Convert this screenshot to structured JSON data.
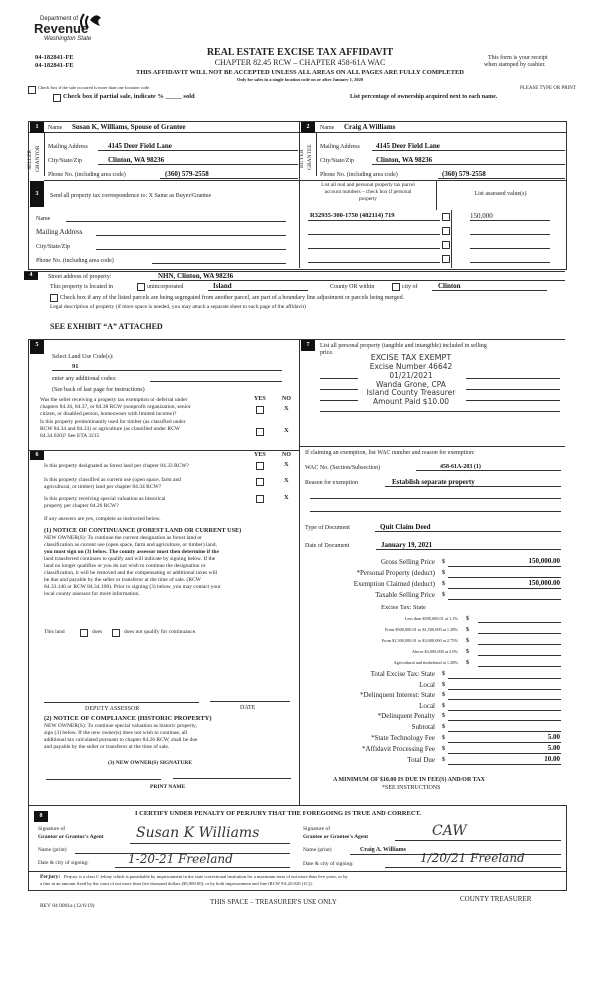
{
  "header": {
    "dept_line1": "Department of",
    "dept_line2": "Revenue",
    "dept_line3": "Washington State",
    "form_ids": [
      "04-182841-FE",
      "04-182841-FE"
    ],
    "title": "REAL ESTATE EXCISE TAX AFFIDAVIT",
    "subtitle": "CHAPTER 82.45 RCW – CHAPTER 458-61A WAC",
    "receipt_note": [
      "This form is your receipt",
      "when stamped by cashier."
    ],
    "warning": "THIS AFFIDAVIT WILL NOT BE ACCEPTED UNLESS ALL AREAS ON ALL PAGES ARE FULLY COMPLETED",
    "only_for": "Only for sales in a single location code on or after January 1, 2020",
    "multi_location_label": "Check box if the sale occurred is more than one location code.",
    "type_or_print": "PLEASE TYPE OR PRINT",
    "partial_sale_label": "Check box if partial sale, indicate % _____ sold",
    "ownership_note": "List percentage of ownership acquired next to each name."
  },
  "seller": {
    "section": "1",
    "side_label": [
      "SELLER",
      "GRANTOR"
    ],
    "name_label": "Name",
    "name": "Susan K, Williams, Spouse of Grantee",
    "mailing_label": "Mailing Address",
    "mailing": "4145 Deer Field Lane",
    "city_label": "City/State/Zip",
    "city": "Clinton, WA 98236",
    "phone_label": "Phone No. (including area code)",
    "phone": "(360) 579-2558"
  },
  "buyer": {
    "section": "2",
    "side_label": [
      "BUYER",
      "GRANTEE"
    ],
    "name_label": "Name",
    "name": "Craig A Williams",
    "mailing_label": "Mailing Address",
    "mailing": "4145 Deer Field Lane",
    "city_label": "City/State/Zip",
    "city": "Clinton, WA 98236",
    "phone_label": "Phone No. (including area code)",
    "phone": "(360) 579-2558"
  },
  "correspondence": {
    "section": "3",
    "label": "Send all property tax correspondence to: X Same as Buyer/Grantee",
    "name_label": "Name",
    "mailing_label": "Mailing Address",
    "city_label": "City/State/Zip",
    "phone_label": "Phone No. (including area code)"
  },
  "parcels": {
    "header": [
      "List all real and personal property tax parcel",
      "account numbers – check box if personal",
      "property"
    ],
    "assessed_header": "List assessed value(s)",
    "rows": [
      {
        "number": "R32935-300-1750 (482114) 719",
        "personal": false,
        "value": "150,000"
      },
      {
        "number": "",
        "personal": false,
        "value": ""
      },
      {
        "number": "",
        "personal": false,
        "value": ""
      },
      {
        "number": "",
        "personal": false,
        "value": ""
      }
    ]
  },
  "property": {
    "section": "4",
    "street_label": "Street address of property:",
    "street": "NHN, Clinton, WA  98236",
    "located_label": "This property is located in",
    "unincorporated_label": "unincorporated",
    "county": "Island",
    "county_or_label": "County OR  within",
    "city_of_label": "city of",
    "city": "Clinton",
    "segregated_label": "Check box if any of the listed parcels are being segregated from another parcel, are part of a boundary line adjustment or parcels being merged.",
    "legal_label": "Legal description of property (if more space is needed, you may attach a separate sheet to each page of the affidavit)",
    "legal": "SEE EXHIBIT “A” ATTACHED"
  },
  "land_use": {
    "section": "5",
    "select_label": "Select Land Use Code(s):",
    "code": "91",
    "additional_label": "enter any additional codes:",
    "see_back": "(See back of last page for instructions)",
    "yes": "YES",
    "no": "NO",
    "questions": [
      {
        "lines": [
          "Was the seller receiving a property tax exemption or deferral under",
          "chapters 84.36, 84.37, or 84.38 RCW (nonprofit organization, senior",
          "citizen, or disabled person, homeowner with limited income)?"
        ],
        "answer": "X"
      },
      {
        "lines": [
          "Is this property predominantly used for timber (as classified under",
          "RCW 84.34 and 84.33) or agriculture (as classified under RCW",
          "84.34.020)? See ETA 3215"
        ],
        "answer": "X"
      }
    ]
  },
  "section6": {
    "section": "6",
    "yes": "YES",
    "no": "NO",
    "questions": [
      {
        "lines": [
          "Is this property designated as forest land per chapter 84.33 RCW?"
        ],
        "answer": "X"
      },
      {
        "lines": [
          "Is this property classified as current use (open space, farm and",
          "agricultural, or timber) land per chapter 84.34 RCW?"
        ],
        "answer": "X"
      },
      {
        "lines": [
          "Is this property receiving special valuation as historical",
          "property per chapter 84.26 RCW?"
        ],
        "answer": "X"
      }
    ],
    "if_any": "If any answers are yes, complete as instructed below.",
    "notice1_title": "(1) NOTICE OF CONTINUANCE (FOREST LAND OR CURRENT USE)",
    "notice1_lines": [
      "NEW OWNER(S): To continue the current designation as forest land or",
      "classification as current use (open space, farm and agriculture, or timber) land,",
      "you must sign on (3) below.  The county assessor must then determine if the",
      "land transferred continues to qualify and will indicate by signing below.  If the",
      "land no longer qualifies or you do not wish to continue the designation or",
      "classification, it will be removed and the compensating or additional taxes will",
      "be due and payable by the seller or transferor at the time of sale.  (RCW",
      "84.33.140 or RCW 84.34.108). Prior to signing (3) below, you may contact your",
      "local county assessor for more information."
    ],
    "this_land": "This land",
    "does": "does",
    "does_not": "does not qualify for continuance.",
    "deputy_assessor": "DEPUTY ASSESSOR",
    "date": "DATE",
    "notice2_title": "(2) NOTICE OF COMPLIANCE (HISTORIC PROPERTY)",
    "notice2_lines": [
      "NEW OWNER(S):  To continue special valuation as historic property,",
      "sign (3) below.  If the new owner(s) does not wish to continue, all",
      "additional tax calculated pursuant to chapter 84.26 RCW, shall be due",
      "and payable by the seller or transferor at the time of sale."
    ],
    "signature_label": "(3)  NEW OWNER(S) SIGNATURE",
    "print_name": "PRINT NAME"
  },
  "personal_property": {
    "section": "7",
    "label": [
      "List all personal property (tangible and intangible) included in selling",
      "price."
    ],
    "stamp": [
      "EXCISE TAX EXEMPT",
      "Excise Number 46642",
      "01/21/2021",
      "Wanda Grone, CPA",
      "Island County Treasurer",
      "Amount Paid $10.00"
    ]
  },
  "exemption": {
    "label": "If claiming an exemption, list WAC number and reason for exemption:",
    "wac_label": "WAC No. (Section/Subsection)",
    "wac": "458-61A-203 (1)",
    "reason_label": "Reason for exemption",
    "reason": "Establish separate property",
    "doc_type_label": "Type of Document",
    "doc_type": "Quit Claim Deed",
    "doc_date_label": "Date of Document",
    "doc_date": "January 19, 2021"
  },
  "tax_lines": [
    {
      "label": "Gross Selling Price",
      "value": "150,000.00",
      "small": false
    },
    {
      "label": "*Personal Property (deduct)",
      "value": "",
      "small": false
    },
    {
      "label": "Exemption Claimed (deduct)",
      "value": "150,000.00",
      "small": false
    },
    {
      "label": "Taxable Selling Price",
      "value": "",
      "small": false
    },
    {
      "label": "Less than $500,000.01 at 1.1%",
      "value": "",
      "small": true
    },
    {
      "label": "From $500,000.01 to $1,500,000 at 1.28%",
      "value": "",
      "small": true
    },
    {
      "label": "From $1,500,000.01 to $3,000,000 at 2.75%",
      "value": "",
      "small": true
    },
    {
      "label": "Above $3,000,000 at 3.0%",
      "value": "",
      "small": true
    },
    {
      "label": "Agricultural and timberland at 1.28%",
      "value": "",
      "small": true
    },
    {
      "label": "Total Excise Tax: State",
      "value": "",
      "small": false
    },
    {
      "label": "Local",
      "value": "",
      "small": false
    },
    {
      "label": "*Delinquent Interest: State",
      "value": "",
      "small": false
    },
    {
      "label": "Local",
      "value": "",
      "small": false
    },
    {
      "label": "*Delinquent Penalty",
      "value": "",
      "small": false
    },
    {
      "label": "Subtotal",
      "value": "",
      "small": false
    },
    {
      "label": "*State Technology Fee",
      "value": "5.00",
      "small": false
    },
    {
      "label": "*Affidavit Processing Fee",
      "value": "5.00",
      "small": false
    },
    {
      "label": "Total Due",
      "value": "10.00",
      "small": false
    }
  ],
  "excise_tax_state_label": "Excise Tax:  State",
  "currency_symbol": "$",
  "minimum_note": "A MINIMUM OF $10.00 IS DUE IN FEE(S) AND/OR TAX",
  "see_instructions": "*SEE INSTRUCTIONS",
  "certification": {
    "section": "8",
    "title": "I CERTIFY UNDER PENALTY OF PERJURY THAT THE FOREGOING IS TRUE AND CORRECT.",
    "grantor_sig_label": [
      "Signature of",
      "Grantor or Grantor's Agent"
    ],
    "grantor_signature": "Susan K Williams",
    "grantor_name_label": "Name (print)",
    "grantor_date_label": "Date & city of signing:",
    "grantor_date": "1-20-21 Freeland",
    "grantee_sig_label": [
      "Signature of",
      "Grantee or Grantee's Agent"
    ],
    "grantee_signature": "CAW",
    "grantee_name_label": "Name (print)",
    "grantee_name": "Craig A. Williams",
    "grantee_date_label": "Date & city of signing:",
    "grantee_date": "1/20/21 Freeland"
  },
  "perjury": {
    "label": "Perjury:",
    "lines": [
      "Perjury is a class C felony which is punishable by imprisonment in the state correctional institution for a maximum term of not more than five years, or by",
      "a fine in an amount fixed by the court of not more than five thousand dollars ($5,000.00), or by both imprisonment and fine (RCW 9A.20.020 (1C))."
    ]
  },
  "footer": {
    "rev": "REV 84 0001a (12/6/19)",
    "treasurer_space": "THIS SPACE – TREASURER'S USE ONLY",
    "county_treasurer": "COUNTY TREASURER"
  }
}
